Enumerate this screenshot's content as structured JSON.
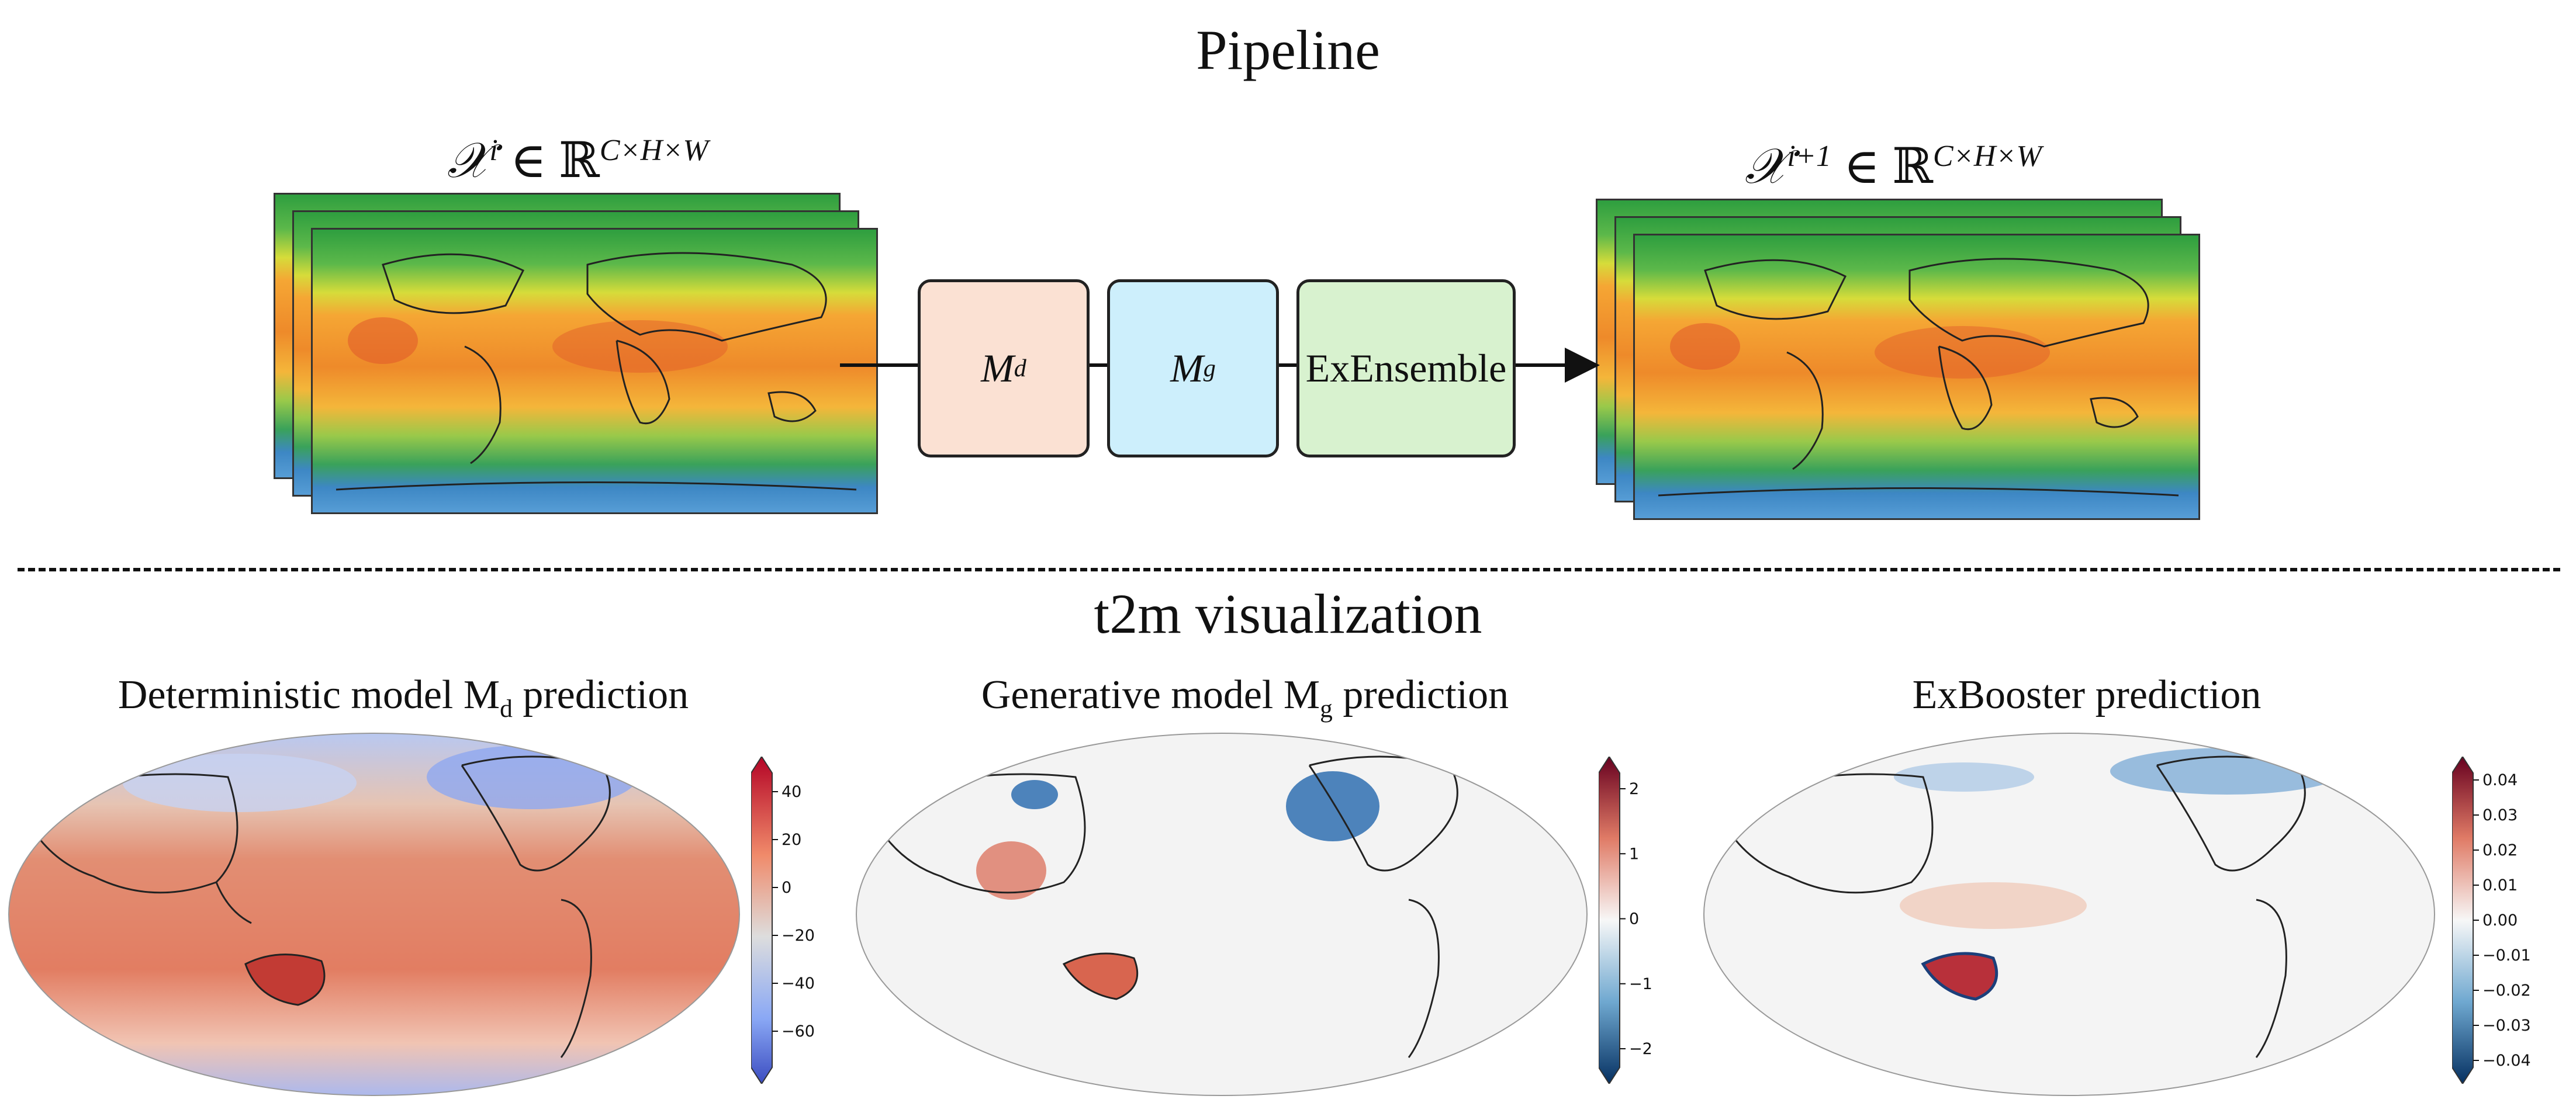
{
  "pipeline": {
    "title": "Pipeline",
    "input_label": {
      "base": "𝒳",
      "sup": "i",
      "rel": " ∈ ℝ",
      "dims": "C×H×W"
    },
    "output_label": {
      "base": "𝒳",
      "sup": "i+1",
      "rel": " ∈ ℝ",
      "dims": "C×H×W"
    },
    "blocks": [
      {
        "name": "M",
        "sub": "d",
        "color": "#fbe1d3"
      },
      {
        "name": "M",
        "sub": "g",
        "color": "#cdeffc"
      },
      {
        "name": "ExEnsemble",
        "sub": "",
        "color": "#d8f2cf"
      }
    ]
  },
  "visualization": {
    "title": "t2m visualization",
    "panels": [
      {
        "title_pre": "Deterministic model M",
        "title_sub": "d",
        "title_post": " prediction",
        "colorbar_ticks": [
          "40",
          "20",
          "0",
          "−20",
          "−40",
          "−60"
        ],
        "colormap": "coolwarm"
      },
      {
        "title_pre": "Generative model M",
        "title_sub": "g",
        "title_post": " prediction",
        "colorbar_ticks": [
          "2",
          "1",
          "0",
          "−1",
          "−2"
        ],
        "colormap": "RdBu_r"
      },
      {
        "title_pre": "ExBooster prediction",
        "title_sub": "",
        "title_post": "",
        "colorbar_ticks": [
          "0.04",
          "0.03",
          "0.02",
          "0.01",
          "0.00",
          "−0.01",
          "−0.02",
          "−0.03",
          "−0.04"
        ],
        "colormap": "RdBu_r"
      }
    ]
  }
}
